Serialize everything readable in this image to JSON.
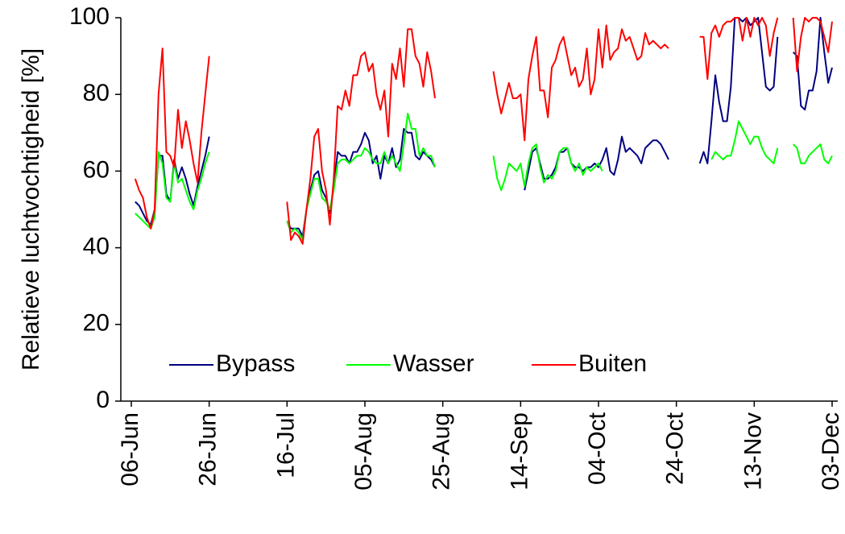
{
  "chart_data": {
    "type": "line",
    "ylabel": "Relatieve luchtvochtigheid [%]",
    "categories": [
      "06-Jun",
      null,
      null,
      null,
      null,
      null,
      null,
      null,
      null,
      null,
      null,
      null,
      null,
      null,
      null,
      null,
      null,
      null,
      null,
      null,
      "26-Jun",
      null,
      null,
      null,
      null,
      null,
      null,
      null,
      null,
      null,
      null,
      null,
      null,
      null,
      null,
      null,
      null,
      null,
      null,
      null,
      "16-Jul",
      null,
      null,
      null,
      null,
      null,
      null,
      null,
      null,
      null,
      null,
      null,
      null,
      null,
      null,
      null,
      null,
      null,
      null,
      null,
      "05-Aug",
      null,
      null,
      null,
      null,
      null,
      null,
      null,
      null,
      null,
      null,
      null,
      null,
      null,
      null,
      null,
      null,
      null,
      null,
      null,
      "25-Aug",
      null,
      null,
      null,
      null,
      null,
      null,
      null,
      null,
      null,
      null,
      null,
      null,
      null,
      null,
      null,
      null,
      null,
      null,
      null,
      "14-Sep",
      null,
      null,
      null,
      null,
      null,
      null,
      null,
      null,
      null,
      null,
      null,
      null,
      null,
      null,
      null,
      null,
      null,
      null,
      null,
      "04-Oct",
      null,
      null,
      null,
      null,
      null,
      null,
      null,
      null,
      null,
      null,
      null,
      null,
      null,
      null,
      null,
      null,
      null,
      null,
      null,
      "24-Oct",
      null,
      null,
      null,
      null,
      null,
      null,
      null,
      null,
      null,
      null,
      null,
      null,
      null,
      null,
      null,
      null,
      null,
      null,
      null,
      "13-Nov",
      null,
      null,
      null,
      null,
      null,
      null,
      null,
      null,
      null,
      null,
      null,
      null,
      null,
      null,
      null,
      null,
      null,
      null,
      null,
      "03-Dec"
    ],
    "series": [
      {
        "name": "Bypass",
        "color": "#000080",
        "values": [
          null,
          52,
          51,
          49,
          47,
          46,
          50,
          64,
          64,
          54,
          52,
          63,
          58,
          61,
          58,
          54,
          51,
          56,
          60,
          64,
          69,
          null,
          null,
          null,
          null,
          null,
          null,
          null,
          null,
          null,
          null,
          null,
          null,
          null,
          null,
          null,
          null,
          null,
          null,
          null,
          47,
          45,
          45,
          45,
          43,
          50,
          55,
          59,
          60,
          55,
          53,
          49,
          56,
          65,
          64,
          64,
          62,
          65,
          65,
          67,
          70,
          68,
          62,
          64,
          58,
          64,
          62,
          66,
          61,
          63,
          71,
          70,
          70,
          64,
          63,
          65,
          64,
          63,
          61,
          null,
          null,
          null,
          null,
          null,
          null,
          null,
          null,
          null,
          null,
          null,
          null,
          null,
          null,
          null,
          null,
          null,
          null,
          null,
          null,
          null,
          null,
          55,
          60,
          65,
          66,
          62,
          58,
          58,
          59,
          61,
          65,
          65,
          66,
          62,
          61,
          61,
          60,
          61,
          61,
          62,
          61,
          63,
          66,
          60,
          59,
          63,
          69,
          65,
          66,
          65,
          64,
          62,
          66,
          67,
          68,
          68,
          67,
          65,
          63,
          null,
          null,
          null,
          null,
          null,
          null,
          null,
          62,
          65,
          62,
          73,
          85,
          78,
          73,
          73,
          82,
          100,
          100,
          99,
          100,
          98,
          99,
          100,
          91,
          82,
          81,
          82,
          95,
          null,
          null,
          null,
          91,
          90,
          77,
          76,
          81,
          81,
          86,
          100,
          91,
          83,
          87
        ]
      },
      {
        "name": "Wasser",
        "color": "#00ff00",
        "values": [
          null,
          49,
          48,
          47,
          46,
          45,
          48,
          65,
          62,
          53,
          52,
          62,
          57,
          58,
          55,
          52,
          50,
          55,
          58,
          62,
          65,
          null,
          null,
          null,
          null,
          null,
          null,
          null,
          null,
          null,
          null,
          null,
          null,
          null,
          null,
          null,
          null,
          null,
          null,
          null,
          47,
          44,
          45,
          44,
          42,
          50,
          54,
          58,
          58,
          53,
          52,
          50,
          55,
          62,
          63,
          63,
          62,
          63,
          64,
          64,
          66,
          65,
          63,
          62,
          62,
          65,
          62,
          64,
          62,
          60,
          67,
          75,
          71,
          71,
          64,
          66,
          64,
          64,
          61,
          null,
          null,
          null,
          null,
          null,
          null,
          null,
          null,
          null,
          null,
          null,
          null,
          null,
          null,
          64,
          58,
          55,
          58,
          62,
          61,
          60,
          62,
          56,
          62,
          66,
          67,
          61,
          57,
          59,
          58,
          60,
          65,
          66,
          66,
          62,
          60,
          62,
          59,
          61,
          60,
          61,
          62,
          60,
          null,
          null,
          null,
          null,
          null,
          null,
          null,
          null,
          null,
          null,
          null,
          null,
          null,
          null,
          null,
          null,
          null,
          null,
          null,
          null,
          null,
          null,
          null,
          null,
          null,
          null,
          null,
          63,
          65,
          64,
          63,
          64,
          64,
          68,
          73,
          71,
          69,
          67,
          69,
          69,
          66,
          64,
          63,
          62,
          66,
          null,
          null,
          null,
          67,
          66,
          62,
          62,
          64,
          65,
          66,
          67,
          63,
          62,
          64
        ]
      },
      {
        "name": "Buiten",
        "color": "#ff0000",
        "values": [
          null,
          58,
          55,
          53,
          48,
          45,
          50,
          80,
          92,
          65,
          64,
          61,
          76,
          66,
          73,
          68,
          62,
          57,
          70,
          80,
          90,
          null,
          null,
          null,
          null,
          null,
          null,
          null,
          null,
          null,
          null,
          null,
          null,
          null,
          null,
          null,
          null,
          null,
          null,
          null,
          52,
          42,
          44,
          43,
          41,
          50,
          58,
          69,
          71,
          60,
          55,
          46,
          58,
          77,
          76,
          81,
          77,
          85,
          85,
          90,
          91,
          86,
          88,
          80,
          76,
          81,
          69,
          88,
          84,
          92,
          82,
          97,
          97,
          90,
          88,
          82,
          91,
          86,
          79,
          null,
          null,
          null,
          null,
          null,
          null,
          null,
          null,
          null,
          null,
          null,
          null,
          null,
          null,
          86,
          80,
          75,
          79,
          83,
          79,
          79,
          80,
          68,
          84,
          90,
          95,
          81,
          81,
          74,
          87,
          89,
          93,
          95,
          90,
          85,
          87,
          82,
          84,
          92,
          80,
          84,
          97,
          87,
          98,
          89,
          91,
          92,
          97,
          94,
          95,
          92,
          89,
          90,
          96,
          93,
          94,
          93,
          92,
          93,
          92,
          null,
          null,
          null,
          null,
          null,
          null,
          null,
          95,
          95,
          84,
          96,
          98,
          95,
          98,
          99,
          99,
          100,
          100,
          94,
          100,
          95,
          100,
          98,
          100,
          98,
          90,
          96,
          100,
          null,
          null,
          null,
          100,
          86,
          95,
          100,
          99,
          100,
          100,
          99,
          95,
          91,
          99
        ]
      }
    ],
    "ylim": [
      0,
      100
    ],
    "yticks": [
      0,
      20,
      40,
      60,
      80,
      100
    ],
    "legend": "lower center",
    "grid": false
  }
}
